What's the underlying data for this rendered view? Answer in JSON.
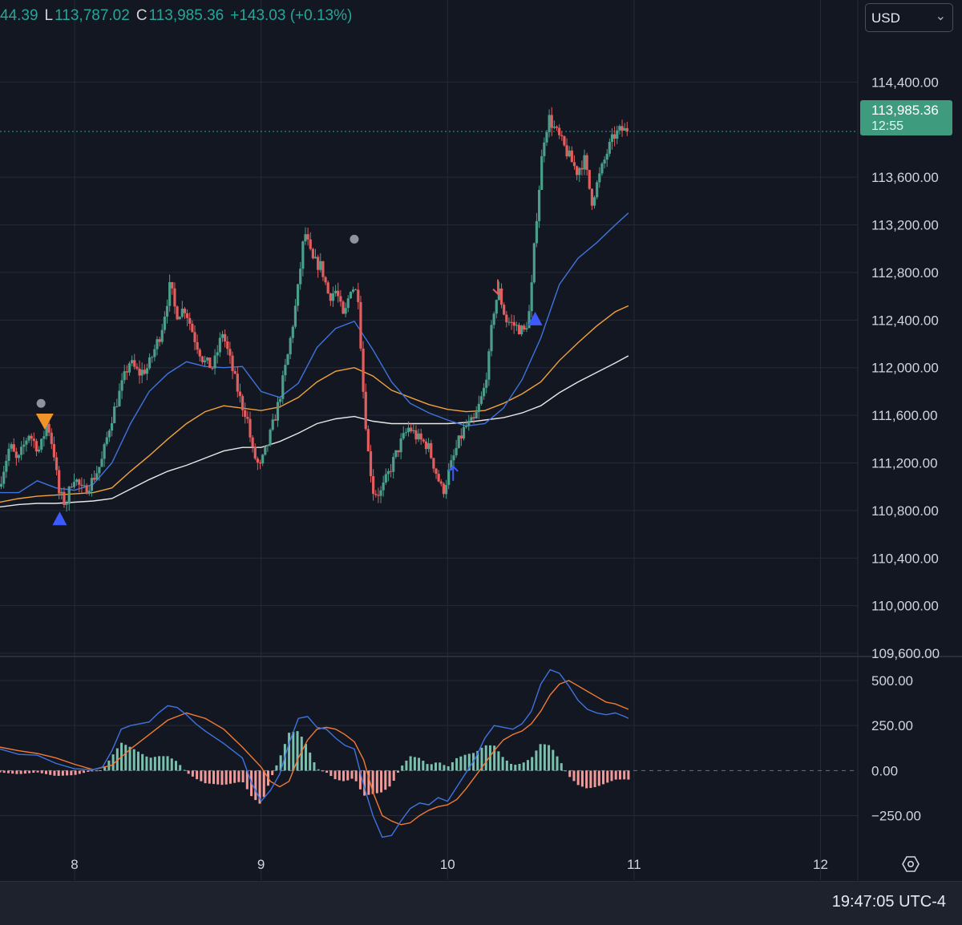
{
  "legend": {
    "open_value": "44.39",
    "low_label": "L",
    "low_value": "113,787.02",
    "close_label": "C",
    "close_value": "113,985.36",
    "change": "+143.03 (+0.13%)"
  },
  "currency": {
    "label": "USD",
    "chevron_icon": "chevron-down-icon"
  },
  "price_tag": {
    "price": "113,985.36",
    "countdown": "12:55"
  },
  "clock": "19:47:05 UTC-4",
  "settings_icon": "hexagon-gear-icon",
  "colors": {
    "background": "#131722",
    "grid": "#252a36",
    "up": "#4a9e8a",
    "down": "#e25d5d",
    "ma_blue": "#3f73e0",
    "ma_orange": "#f2a33a",
    "ma_white": "#e8e8e8",
    "macd_line": "#3f73e0",
    "signal_line": "#f37a35",
    "hist_pos": "#7ac1ad",
    "hist_neg": "#f29a9a",
    "last_price_line": "#26a69a"
  },
  "chart_data": [
    {
      "type": "candlestick",
      "x_axis": {
        "ticks": [
          "8",
          "9",
          "10",
          "11",
          "12"
        ],
        "tick_x": [
          7.9,
          8.9,
          9.9,
          10.9,
          11.9
        ],
        "range": [
          7.5,
          12.1
        ]
      },
      "y_axis": {
        "ticks": [
          "114,400.00",
          "113,600.00",
          "113,200.00",
          "112,800.00",
          "112,400.00",
          "112,000.00",
          "111,600.00",
          "111,200.00",
          "110,800.00",
          "110,400.00",
          "110,000.00",
          "109,600.00"
        ],
        "tick_values": [
          114400,
          113600,
          113200,
          112800,
          112400,
          112000,
          111600,
          111200,
          110800,
          110400,
          110000,
          109600
        ],
        "range": [
          109580,
          114800
        ]
      },
      "last_price": 113985.36,
      "price_keypoints": [
        [
          7.5,
          111000
        ],
        [
          7.56,
          111350
        ],
        [
          7.6,
          111200
        ],
        [
          7.66,
          111450
        ],
        [
          7.72,
          111300
        ],
        [
          7.76,
          111550
        ],
        [
          7.8,
          111250
        ],
        [
          7.82,
          110950
        ],
        [
          7.86,
          110850
        ],
        [
          7.9,
          111100
        ],
        [
          7.95,
          110950
        ],
        [
          8.0,
          111050
        ],
        [
          8.05,
          111200
        ],
        [
          8.1,
          111550
        ],
        [
          8.15,
          111800
        ],
        [
          8.2,
          112050
        ],
        [
          8.25,
          111950
        ],
        [
          8.3,
          112000
        ],
        [
          8.37,
          112300
        ],
        [
          8.42,
          112700
        ],
        [
          8.45,
          112450
        ],
        [
          8.5,
          112500
        ],
        [
          8.55,
          112250
        ],
        [
          8.6,
          112050
        ],
        [
          8.65,
          112000
        ],
        [
          8.7,
          112300
        ],
        [
          8.75,
          112000
        ],
        [
          8.8,
          111700
        ],
        [
          8.83,
          111600
        ],
        [
          8.86,
          111300
        ],
        [
          8.9,
          111150
        ],
        [
          8.95,
          111400
        ],
        [
          9.0,
          111700
        ],
        [
          9.05,
          112100
        ],
        [
          9.1,
          112600
        ],
        [
          9.14,
          113150
        ],
        [
          9.18,
          112900
        ],
        [
          9.23,
          112850
        ],
        [
          9.27,
          112600
        ],
        [
          9.31,
          112650
        ],
        [
          9.35,
          112400
        ],
        [
          9.39,
          112700
        ],
        [
          9.43,
          112600
        ],
        [
          9.45,
          111900
        ],
        [
          9.48,
          111300
        ],
        [
          9.51,
          110950
        ],
        [
          9.55,
          110950
        ],
        [
          9.6,
          111150
        ],
        [
          9.65,
          111350
        ],
        [
          9.7,
          111500
        ],
        [
          9.75,
          111400
        ],
        [
          9.8,
          111350
        ],
        [
          9.85,
          111100
        ],
        [
          9.88,
          110950
        ],
        [
          9.92,
          111150
        ],
        [
          9.96,
          111350
        ],
        [
          10.0,
          111500
        ],
        [
          10.05,
          111550
        ],
        [
          10.1,
          111800
        ],
        [
          10.13,
          112100
        ],
        [
          10.15,
          112450
        ],
        [
          10.18,
          112650
        ],
        [
          10.22,
          112400
        ],
        [
          10.27,
          112350
        ],
        [
          10.32,
          112300
        ],
        [
          10.35,
          112500
        ],
        [
          10.38,
          113200
        ],
        [
          10.42,
          113900
        ],
        [
          10.45,
          114100
        ],
        [
          10.5,
          113950
        ],
        [
          10.55,
          113800
        ],
        [
          10.6,
          113650
        ],
        [
          10.64,
          113750
        ],
        [
          10.68,
          113400
        ],
        [
          10.72,
          113600
        ],
        [
          10.76,
          113800
        ],
        [
          10.8,
          113950
        ],
        [
          10.84,
          114000
        ],
        [
          10.87,
          113985
        ]
      ],
      "ma_blue": [
        [
          7.5,
          110950
        ],
        [
          7.6,
          110950
        ],
        [
          7.7,
          111050
        ],
        [
          7.8,
          110990
        ],
        [
          7.9,
          110970
        ],
        [
          8.0,
          111020
        ],
        [
          8.1,
          111200
        ],
        [
          8.2,
          111530
        ],
        [
          8.3,
          111800
        ],
        [
          8.4,
          111950
        ],
        [
          8.5,
          112050
        ],
        [
          8.6,
          112010
        ],
        [
          8.7,
          112000
        ],
        [
          8.8,
          112010
        ],
        [
          8.9,
          111800
        ],
        [
          9.0,
          111750
        ],
        [
          9.1,
          111870
        ],
        [
          9.2,
          112170
        ],
        [
          9.3,
          112330
        ],
        [
          9.4,
          112390
        ],
        [
          9.5,
          112150
        ],
        [
          9.6,
          111880
        ],
        [
          9.7,
          111700
        ],
        [
          9.8,
          111620
        ],
        [
          9.9,
          111560
        ],
        [
          10.0,
          111510
        ],
        [
          10.1,
          111530
        ],
        [
          10.2,
          111660
        ],
        [
          10.3,
          111900
        ],
        [
          10.4,
          112250
        ],
        [
          10.5,
          112700
        ],
        [
          10.6,
          112920
        ],
        [
          10.7,
          113050
        ],
        [
          10.8,
          113200
        ],
        [
          10.87,
          113300
        ]
      ],
      "ma_orange": [
        [
          7.5,
          110870
        ],
        [
          7.6,
          110900
        ],
        [
          7.7,
          110920
        ],
        [
          7.8,
          110930
        ],
        [
          7.9,
          110940
        ],
        [
          8.0,
          110950
        ],
        [
          8.1,
          110990
        ],
        [
          8.2,
          111130
        ],
        [
          8.3,
          111260
        ],
        [
          8.4,
          111400
        ],
        [
          8.5,
          111530
        ],
        [
          8.6,
          111630
        ],
        [
          8.7,
          111680
        ],
        [
          8.8,
          111660
        ],
        [
          8.9,
          111640
        ],
        [
          9.0,
          111670
        ],
        [
          9.1,
          111750
        ],
        [
          9.2,
          111880
        ],
        [
          9.3,
          111970
        ],
        [
          9.4,
          112000
        ],
        [
          9.5,
          111930
        ],
        [
          9.6,
          111810
        ],
        [
          9.7,
          111750
        ],
        [
          9.8,
          111690
        ],
        [
          9.9,
          111650
        ],
        [
          10.0,
          111630
        ],
        [
          10.1,
          111640
        ],
        [
          10.2,
          111700
        ],
        [
          10.3,
          111780
        ],
        [
          10.4,
          111880
        ],
        [
          10.5,
          112060
        ],
        [
          10.6,
          112210
        ],
        [
          10.7,
          112350
        ],
        [
          10.8,
          112470
        ],
        [
          10.87,
          112520
        ]
      ],
      "ma_white": [
        [
          7.5,
          110830
        ],
        [
          7.6,
          110850
        ],
        [
          7.7,
          110860
        ],
        [
          7.8,
          110860
        ],
        [
          7.9,
          110870
        ],
        [
          8.0,
          110880
        ],
        [
          8.1,
          110900
        ],
        [
          8.2,
          110980
        ],
        [
          8.3,
          111060
        ],
        [
          8.4,
          111130
        ],
        [
          8.5,
          111180
        ],
        [
          8.6,
          111240
        ],
        [
          8.7,
          111300
        ],
        [
          8.8,
          111330
        ],
        [
          8.9,
          111330
        ],
        [
          9.0,
          111380
        ],
        [
          9.1,
          111450
        ],
        [
          9.2,
          111530
        ],
        [
          9.3,
          111570
        ],
        [
          9.4,
          111590
        ],
        [
          9.5,
          111550
        ],
        [
          9.6,
          111530
        ],
        [
          9.7,
          111530
        ],
        [
          9.8,
          111530
        ],
        [
          9.9,
          111530
        ],
        [
          10.0,
          111540
        ],
        [
          10.1,
          111560
        ],
        [
          10.2,
          111580
        ],
        [
          10.3,
          111620
        ],
        [
          10.4,
          111680
        ],
        [
          10.5,
          111790
        ],
        [
          10.6,
          111880
        ],
        [
          10.7,
          111960
        ],
        [
          10.8,
          112040
        ],
        [
          10.87,
          112100
        ]
      ],
      "markers": [
        {
          "kind": "dot",
          "x": 7.72,
          "price": 111700,
          "color": "#8f939d"
        },
        {
          "kind": "down-triangle",
          "x": 7.74,
          "price": 111540,
          "color": "#f0932b"
        },
        {
          "kind": "up-triangle",
          "x": 7.82,
          "price": 110730,
          "color": "#3d5afe"
        },
        {
          "kind": "dot",
          "x": 9.4,
          "price": 113080,
          "color": "#8f939d"
        },
        {
          "kind": "up-arrow",
          "x": 9.93,
          "price": 111170,
          "color": "#3d5afe"
        },
        {
          "kind": "down-arrow",
          "x": 10.17,
          "price": 112620,
          "color": "#e25d5d"
        },
        {
          "kind": "up-triangle",
          "x": 10.37,
          "price": 112410,
          "color": "#3d5afe"
        }
      ]
    },
    {
      "type": "line",
      "subtype": "macd",
      "y_axis": {
        "ticks": [
          "500.00",
          "250.00",
          "0.00",
          "−250.00"
        ],
        "tick_values": [
          500,
          250,
          0,
          -250
        ],
        "range": [
          -430,
          620
        ]
      },
      "macd": [
        [
          7.5,
          120
        ],
        [
          7.6,
          90
        ],
        [
          7.7,
          85
        ],
        [
          7.8,
          40
        ],
        [
          7.9,
          10
        ],
        [
          8.0,
          5
        ],
        [
          8.05,
          20
        ],
        [
          8.1,
          110
        ],
        [
          8.15,
          230
        ],
        [
          8.2,
          250
        ],
        [
          8.25,
          260
        ],
        [
          8.3,
          270
        ],
        [
          8.35,
          320
        ],
        [
          8.4,
          360
        ],
        [
          8.45,
          350
        ],
        [
          8.5,
          310
        ],
        [
          8.55,
          260
        ],
        [
          8.6,
          220
        ],
        [
          8.7,
          150
        ],
        [
          8.8,
          70
        ],
        [
          8.85,
          -70
        ],
        [
          8.9,
          -170
        ],
        [
          8.95,
          -110
        ],
        [
          9.0,
          -20
        ],
        [
          9.05,
          150
        ],
        [
          9.1,
          290
        ],
        [
          9.15,
          300
        ],
        [
          9.2,
          240
        ],
        [
          9.25,
          230
        ],
        [
          9.3,
          180
        ],
        [
          9.35,
          140
        ],
        [
          9.4,
          120
        ],
        [
          9.45,
          -80
        ],
        [
          9.5,
          -250
        ],
        [
          9.55,
          -370
        ],
        [
          9.6,
          -360
        ],
        [
          9.65,
          -280
        ],
        [
          9.7,
          -210
        ],
        [
          9.75,
          -180
        ],
        [
          9.8,
          -190
        ],
        [
          9.85,
          -150
        ],
        [
          9.9,
          -170
        ],
        [
          9.95,
          -90
        ],
        [
          10.0,
          -10
        ],
        [
          10.05,
          70
        ],
        [
          10.1,
          180
        ],
        [
          10.15,
          250
        ],
        [
          10.2,
          240
        ],
        [
          10.25,
          230
        ],
        [
          10.3,
          260
        ],
        [
          10.35,
          330
        ],
        [
          10.4,
          480
        ],
        [
          10.45,
          560
        ],
        [
          10.5,
          540
        ],
        [
          10.55,
          470
        ],
        [
          10.6,
          390
        ],
        [
          10.65,
          340
        ],
        [
          10.7,
          320
        ],
        [
          10.75,
          310
        ],
        [
          10.8,
          320
        ],
        [
          10.85,
          300
        ],
        [
          10.87,
          290
        ]
      ],
      "signal": [
        [
          7.5,
          130
        ],
        [
          7.6,
          110
        ],
        [
          7.7,
          95
        ],
        [
          7.8,
          70
        ],
        [
          7.9,
          35
        ],
        [
          8.0,
          5
        ],
        [
          8.1,
          30
        ],
        [
          8.2,
          120
        ],
        [
          8.3,
          200
        ],
        [
          8.4,
          280
        ],
        [
          8.5,
          320
        ],
        [
          8.6,
          290
        ],
        [
          8.7,
          230
        ],
        [
          8.8,
          130
        ],
        [
          8.9,
          20
        ],
        [
          8.95,
          -60
        ],
        [
          9.0,
          -90
        ],
        [
          9.05,
          -60
        ],
        [
          9.1,
          70
        ],
        [
          9.15,
          170
        ],
        [
          9.2,
          230
        ],
        [
          9.25,
          240
        ],
        [
          9.3,
          230
        ],
        [
          9.35,
          200
        ],
        [
          9.4,
          160
        ],
        [
          9.45,
          60
        ],
        [
          9.5,
          -120
        ],
        [
          9.55,
          -250
        ],
        [
          9.6,
          -280
        ],
        [
          9.65,
          -300
        ],
        [
          9.7,
          -290
        ],
        [
          9.75,
          -250
        ],
        [
          9.8,
          -220
        ],
        [
          9.85,
          -200
        ],
        [
          9.9,
          -190
        ],
        [
          9.95,
          -160
        ],
        [
          10.0,
          -100
        ],
        [
          10.05,
          -30
        ],
        [
          10.1,
          40
        ],
        [
          10.15,
          110
        ],
        [
          10.2,
          170
        ],
        [
          10.25,
          200
        ],
        [
          10.3,
          220
        ],
        [
          10.35,
          260
        ],
        [
          10.4,
          330
        ],
        [
          10.45,
          420
        ],
        [
          10.5,
          480
        ],
        [
          10.55,
          500
        ],
        [
          10.6,
          470
        ],
        [
          10.65,
          440
        ],
        [
          10.7,
          410
        ],
        [
          10.75,
          380
        ],
        [
          10.8,
          370
        ],
        [
          10.87,
          340
        ]
      ]
    }
  ]
}
